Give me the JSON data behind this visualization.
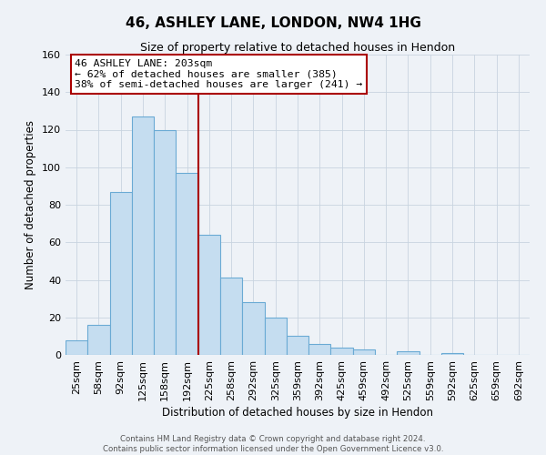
{
  "title": "46, ASHLEY LANE, LONDON, NW4 1HG",
  "subtitle": "Size of property relative to detached houses in Hendon",
  "xlabel": "Distribution of detached houses by size in Hendon",
  "ylabel": "Number of detached properties",
  "bar_labels": [
    "25sqm",
    "58sqm",
    "92sqm",
    "125sqm",
    "158sqm",
    "192sqm",
    "225sqm",
    "258sqm",
    "292sqm",
    "325sqm",
    "359sqm",
    "392sqm",
    "425sqm",
    "459sqm",
    "492sqm",
    "525sqm",
    "559sqm",
    "592sqm",
    "625sqm",
    "659sqm",
    "692sqm"
  ],
  "bar_values": [
    8,
    16,
    87,
    127,
    120,
    97,
    64,
    41,
    28,
    20,
    10,
    6,
    4,
    3,
    0,
    2,
    0,
    1,
    0,
    0,
    0
  ],
  "bar_color": "#c5ddf0",
  "bar_edge_color": "#6aaad4",
  "vline_index": 5,
  "vline_color": "#aa0000",
  "ylim": [
    0,
    160
  ],
  "yticks": [
    0,
    20,
    40,
    60,
    80,
    100,
    120,
    140,
    160
  ],
  "annotation_title": "46 ASHLEY LANE: 203sqm",
  "annotation_line1": "← 62% of detached houses are smaller (385)",
  "annotation_line2": "38% of semi-detached houses are larger (241) →",
  "annotation_box_color": "#ffffff",
  "annotation_box_edge": "#aa0000",
  "footer_line1": "Contains HM Land Registry data © Crown copyright and database right 2024.",
  "footer_line2": "Contains public sector information licensed under the Open Government Licence v3.0.",
  "bg_color": "#eef2f7",
  "grid_color": "#c8d4e0"
}
